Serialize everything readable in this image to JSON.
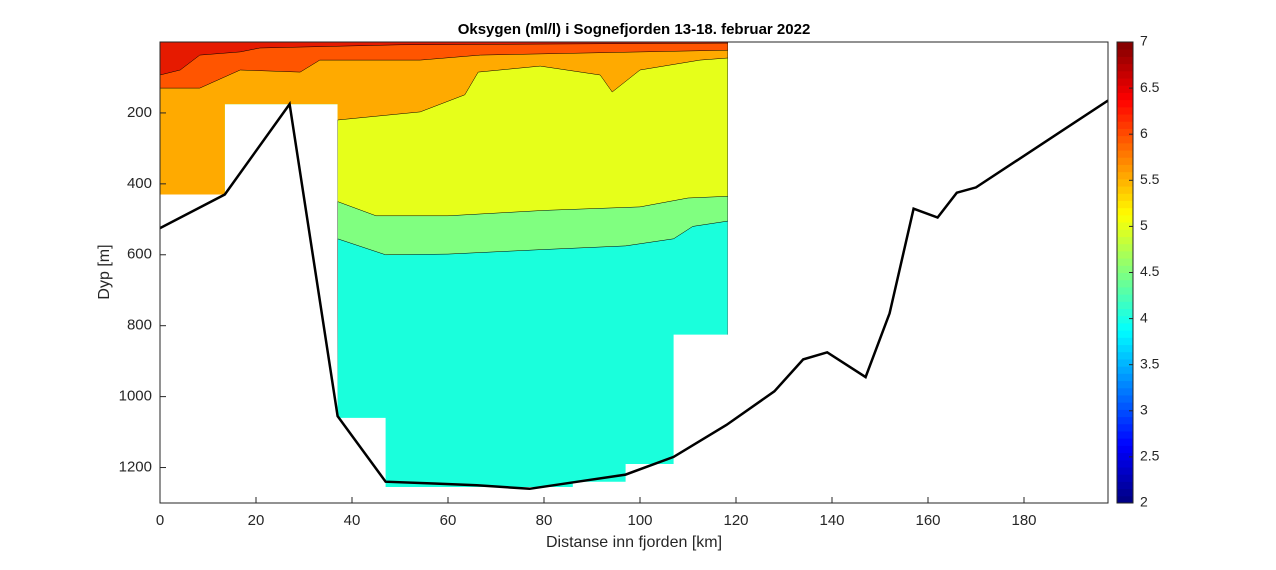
{
  "chart_data": {
    "type": "contour",
    "title": "Oksygen (ml/l) i Sognefjorden 13-18. februar 2022",
    "xlabel": "Distanse inn fjorden [km]",
    "ylabel": "Dyp [m]",
    "xlim": [
      0,
      197.5
    ],
    "ylim": [
      0,
      1300
    ],
    "y_reversed": true,
    "xticks": [
      0,
      20,
      40,
      60,
      80,
      100,
      120,
      140,
      160,
      180
    ],
    "yticks": [
      200,
      400,
      600,
      800,
      1000,
      1200
    ],
    "clim": [
      2,
      7
    ],
    "cticks": [
      2,
      2.5,
      3,
      3.5,
      4,
      4.5,
      5,
      5.5,
      6,
      6.5,
      7
    ],
    "colormap": "jet",
    "coverage": {
      "x": [
        0,
        118.3,
        118.3,
        107,
        107,
        97,
        97,
        86,
        86,
        47,
        47,
        37,
        37,
        13.5,
        13.5,
        0
      ],
      "y": [
        0,
        0,
        825,
        825,
        1190,
        1190,
        1240,
        1240,
        1255,
        1255,
        1060,
        1060,
        175,
        175,
        430,
        430
      ]
    },
    "regions": [
      {
        "level": 4,
        "color": "#1affdc",
        "x": [
          0,
          118.3
        ],
        "y": [
          1300,
          1300
        ]
      },
      {
        "level": 4.5,
        "color": "#80ff80",
        "x": [
          0,
          36.9,
          37,
          47,
          60,
          80,
          97,
          107,
          111,
          118.3
        ],
        "y": [
          1300,
          1300,
          555,
          600,
          598,
          585,
          575,
          555,
          520,
          505
        ]
      },
      {
        "level": 5,
        "color": "#e6ff1a",
        "x": [
          0,
          36.9,
          37,
          45,
          60,
          80,
          100,
          110,
          118.3
        ],
        "y": [
          1300,
          1300,
          450,
          490,
          490,
          475,
          465,
          440,
          435
        ]
      },
      {
        "level": 5.5,
        "color": "#ffaa00",
        "x": [
          0,
          36.9,
          37,
          54.2,
          63.5,
          66.3,
          79.2,
          91.7,
          94.2,
          100,
          112.5,
          118.3
        ],
        "y": [
          1300,
          1300,
          220,
          197,
          149,
          85,
          68,
          93,
          141,
          79,
          51,
          45
        ]
      },
      {
        "level": 6,
        "color": "#ff5500",
        "x": [
          0,
          8.3,
          16.7,
          29.2,
          33.3,
          54.2,
          66.7,
          118.3
        ],
        "y": [
          130,
          130,
          79,
          85,
          51,
          51,
          37,
          23
        ]
      },
      {
        "level": 6.5,
        "color": "#e61a00",
        "x": [
          0,
          4.2,
          8.3,
          16.7,
          20.8,
          50,
          118.3
        ],
        "y": [
          93,
          79,
          37,
          28,
          17,
          8,
          3
        ]
      }
    ],
    "line": {
      "color": "#000000",
      "x": [
        0,
        13.5,
        27,
        37,
        47,
        57,
        66,
        77,
        87,
        97,
        107,
        118,
        128,
        134,
        139,
        147,
        152,
        157,
        162,
        166,
        170,
        197.5
      ],
      "y": [
        525,
        430,
        175,
        1055,
        1240,
        1245,
        1250,
        1260,
        1240,
        1220,
        1170,
        1080,
        985,
        895,
        875,
        945,
        765,
        470,
        495,
        425,
        410,
        165
      ]
    }
  }
}
